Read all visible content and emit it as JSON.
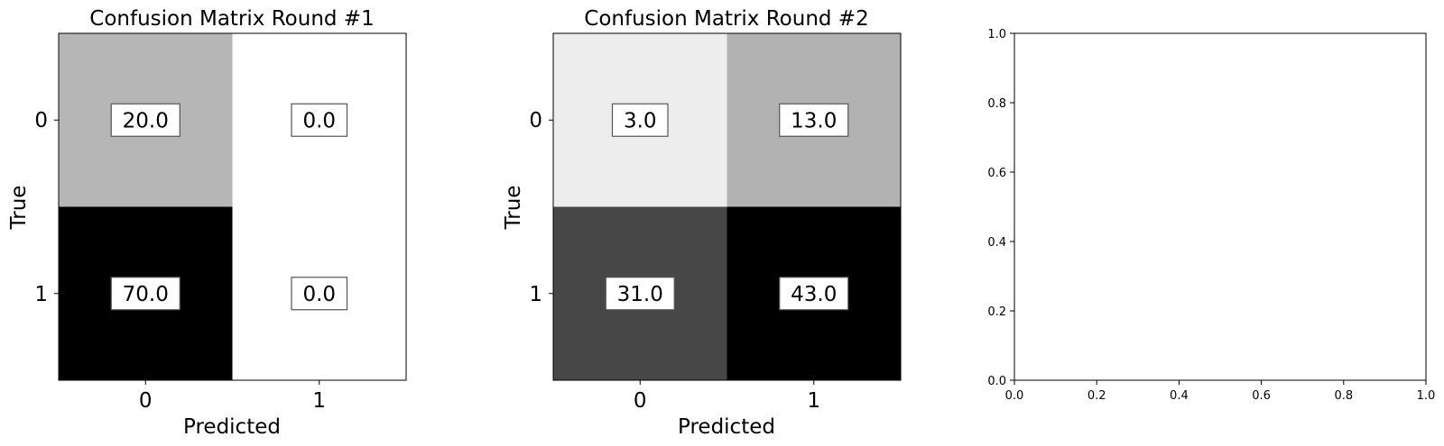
{
  "chart_data": [
    {
      "type": "heatmap",
      "title": "Confusion Matrix Round #1",
      "xlabel": "Predicted",
      "ylabel": "True",
      "x_categories": [
        "0",
        "1"
      ],
      "y_categories": [
        "0",
        "1"
      ],
      "values": [
        [
          20.0,
          0.0
        ],
        [
          70.0,
          0.0
        ]
      ],
      "cell_labels": [
        [
          "20.0",
          "0.0"
        ],
        [
          "70.0",
          "0.0"
        ]
      ],
      "colormap": "greys",
      "grid": false
    },
    {
      "type": "heatmap",
      "title": "Confusion Matrix Round #2",
      "xlabel": "Predicted",
      "ylabel": "True",
      "x_categories": [
        "0",
        "1"
      ],
      "y_categories": [
        "0",
        "1"
      ],
      "values": [
        [
          3.0,
          13.0
        ],
        [
          31.0,
          43.0
        ]
      ],
      "cell_labels": [
        [
          "3.0",
          "13.0"
        ],
        [
          "31.0",
          "43.0"
        ]
      ],
      "colormap": "greys",
      "grid": false
    },
    {
      "type": "scatter",
      "title": "",
      "xlabel": "",
      "ylabel": "",
      "xlim": [
        0.0,
        1.0
      ],
      "ylim": [
        0.0,
        1.0
      ],
      "x_ticks": [
        "0.0",
        "0.2",
        "0.4",
        "0.6",
        "0.8",
        "1.0"
      ],
      "y_ticks": [
        "0.0",
        "0.2",
        "0.4",
        "0.6",
        "0.8",
        "1.0"
      ],
      "series": [],
      "grid": false
    }
  ]
}
